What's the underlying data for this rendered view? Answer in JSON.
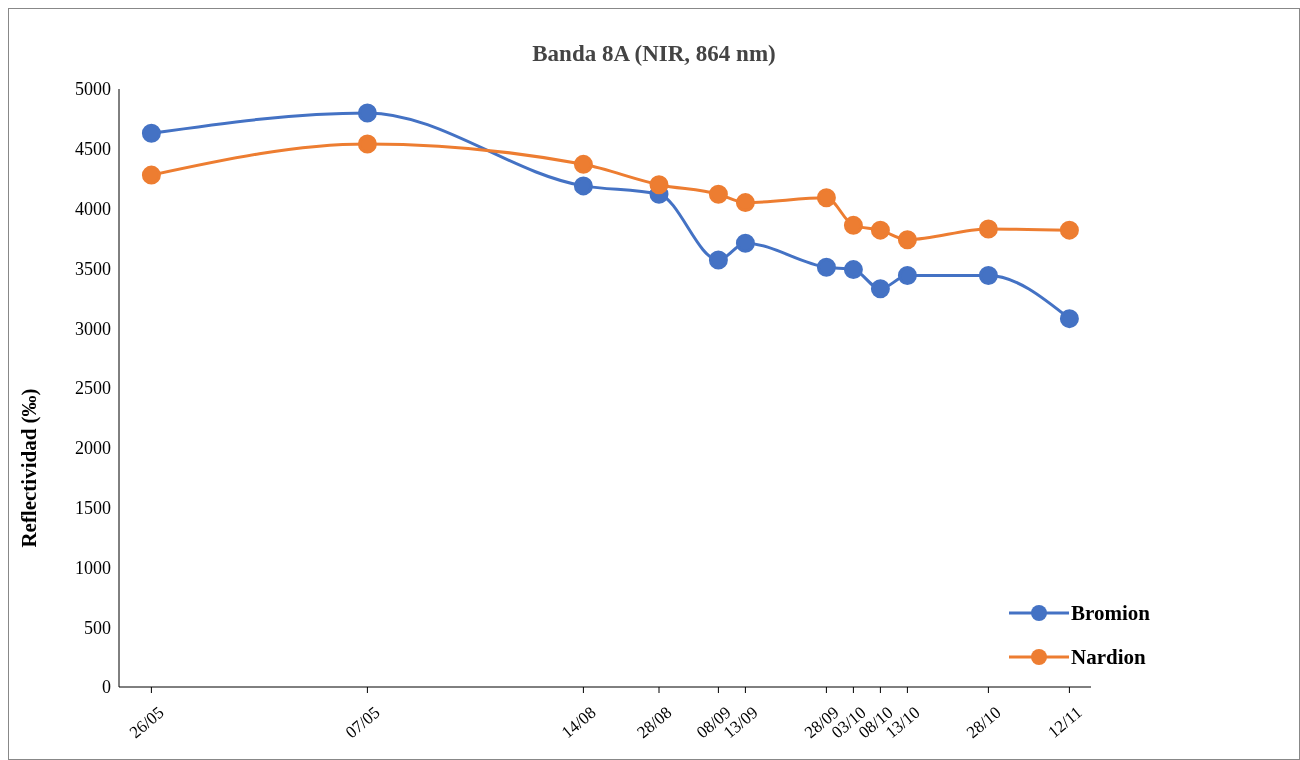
{
  "chart_data": {
    "type": "line",
    "title": "Banda 8A (NIR, 864 nm)",
    "ylabel": "Reflectividad (‰)",
    "x": [
      "--05-26",
      "--07-05",
      "--08-14",
      "--08-28",
      "--09-08",
      "--09-13",
      "--09-28",
      "--10-03",
      "--10-08",
      "--10-13",
      "--10-28",
      "--11-12"
    ],
    "xlim": [
      "--05-20",
      "--11-16"
    ],
    "xticks": [
      {
        "value": "--05-26",
        "label": "26/05"
      },
      {
        "value": "--07-05",
        "label": "07/05"
      },
      {
        "value": "--08-14",
        "label": "14/08"
      },
      {
        "value": "--08-28",
        "label": "28/08"
      },
      {
        "value": "--09-08",
        "label": "08/09"
      },
      {
        "value": "--09-13",
        "label": "13/09"
      },
      {
        "value": "--09-28",
        "label": "28/09"
      },
      {
        "value": "--10-03",
        "label": "03/10"
      },
      {
        "value": "--10-08",
        "label": "08/10"
      },
      {
        "value": "--10-13",
        "label": "13/10"
      },
      {
        "value": "--10-28",
        "label": "28/10"
      },
      {
        "value": "--11-12",
        "label": "12/11"
      }
    ],
    "ylim": [
      0,
      5000
    ],
    "yticks": [
      0,
      500,
      1000,
      1500,
      2000,
      2500,
      3000,
      3500,
      4000,
      4500,
      5000
    ],
    "series": [
      {
        "name": "Bromion",
        "color": "#4472c4",
        "values": [
          4630,
          4800,
          4190,
          4120,
          3570,
          3710,
          3510,
          3490,
          3330,
          3440,
          3440,
          3080
        ]
      },
      {
        "name": "Nardion",
        "color": "#ed7d31",
        "values": [
          4280,
          4540,
          4370,
          4200,
          4120,
          4050,
          4090,
          3860,
          3820,
          3740,
          3830,
          3820
        ]
      }
    ],
    "grid": false,
    "legend": "bottom right",
    "marker": "circle",
    "line_style": "solid"
  }
}
